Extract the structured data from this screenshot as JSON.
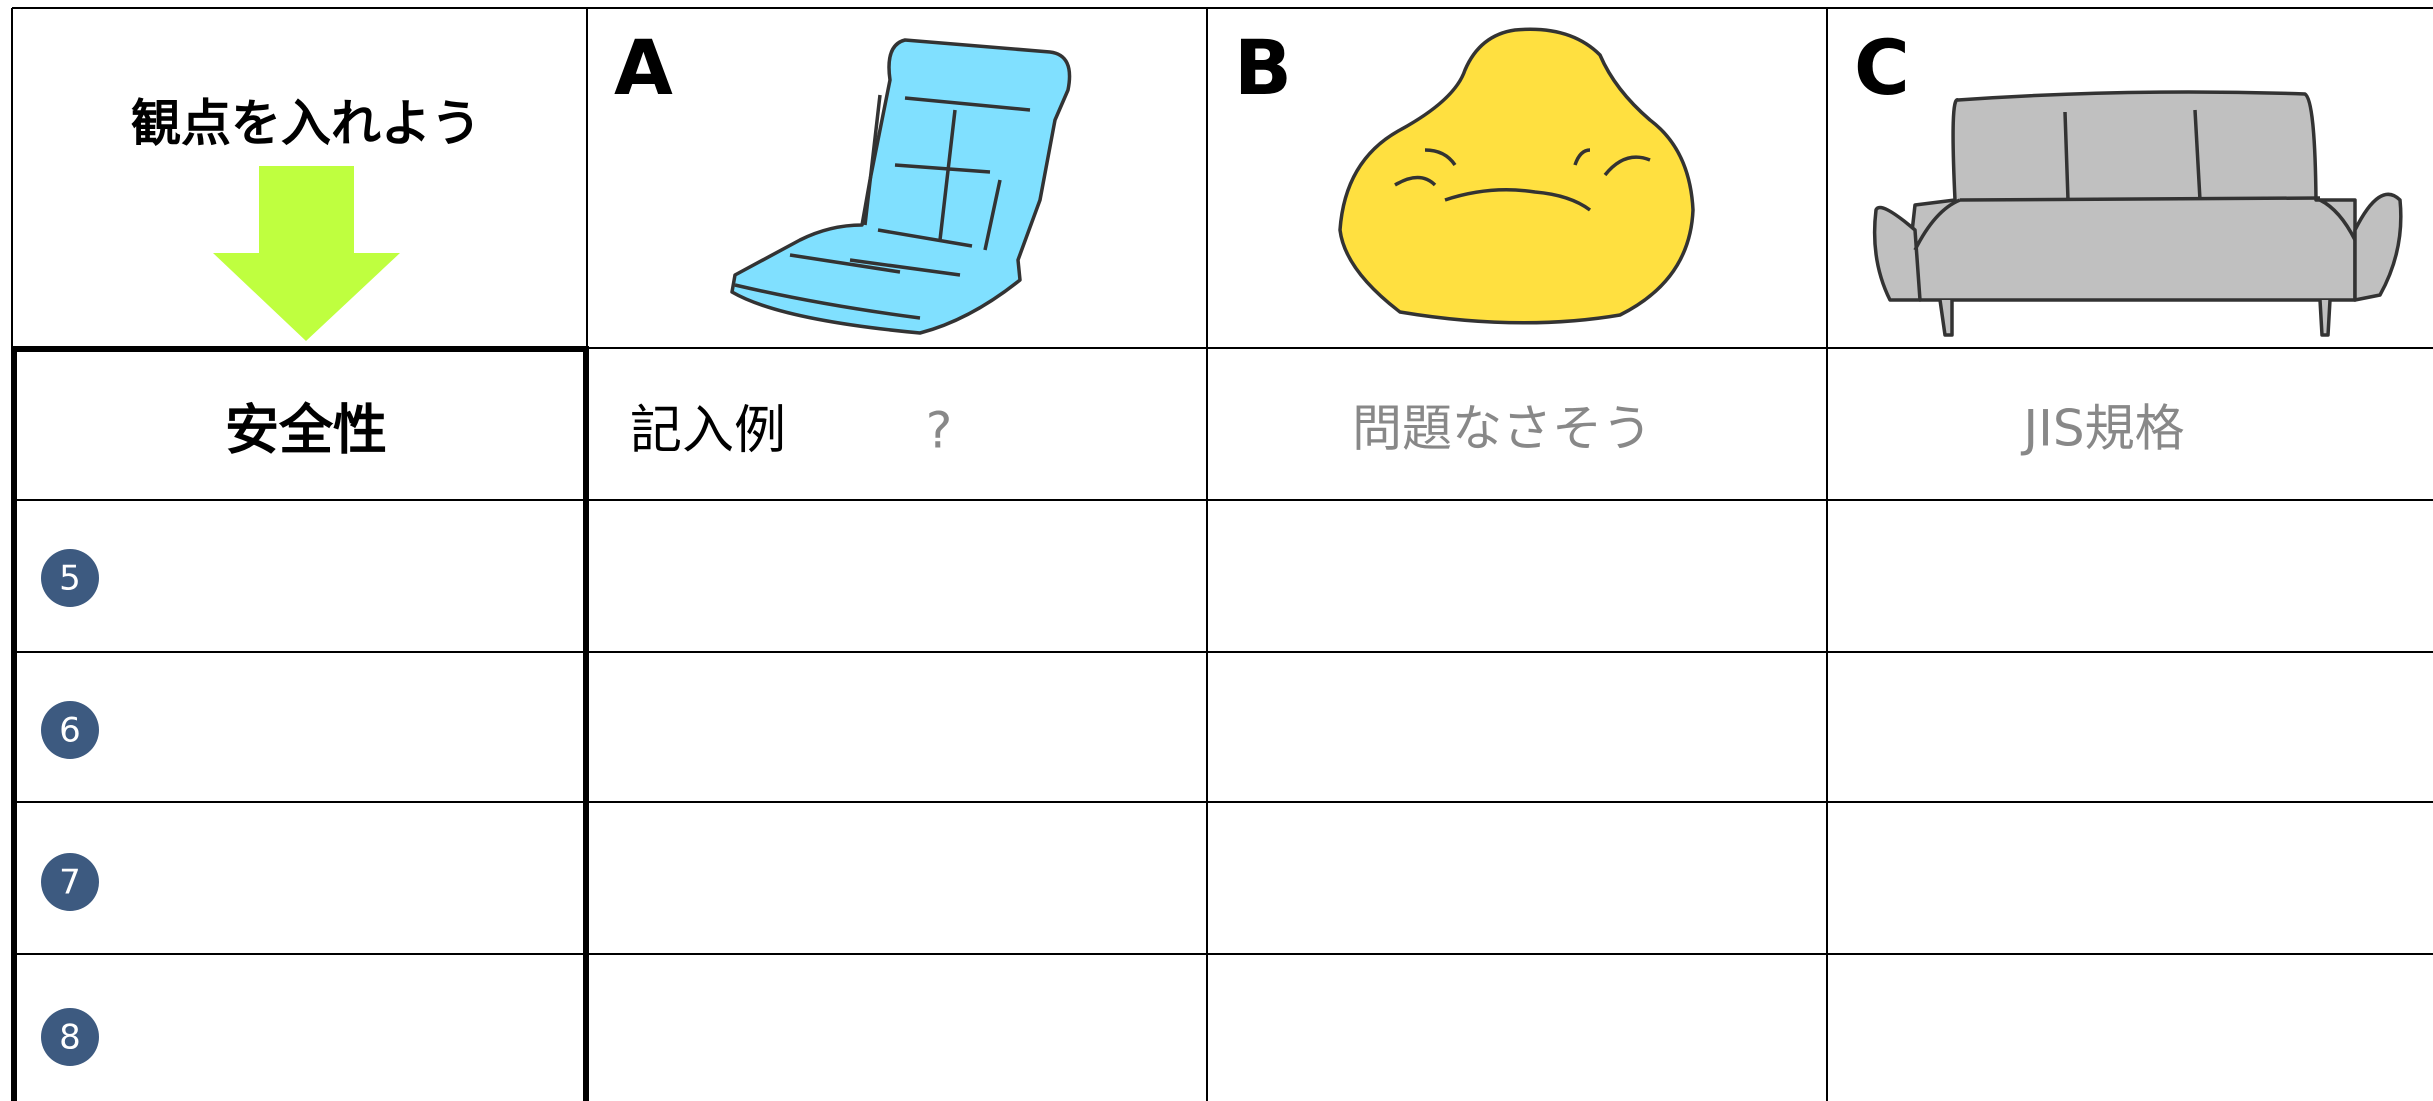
{
  "header": {
    "prompt": "観点を入れよう",
    "columns": [
      "A",
      "B",
      "C"
    ]
  },
  "table": {
    "rows": [
      {
        "label": "安全性",
        "example_label": "記入例",
        "cells": [
          "?",
          "問題なさそう",
          "JIS規格"
        ]
      },
      {
        "label": "5"
      },
      {
        "label": "6"
      },
      {
        "label": "7"
      },
      {
        "label": "8"
      }
    ]
  }
}
